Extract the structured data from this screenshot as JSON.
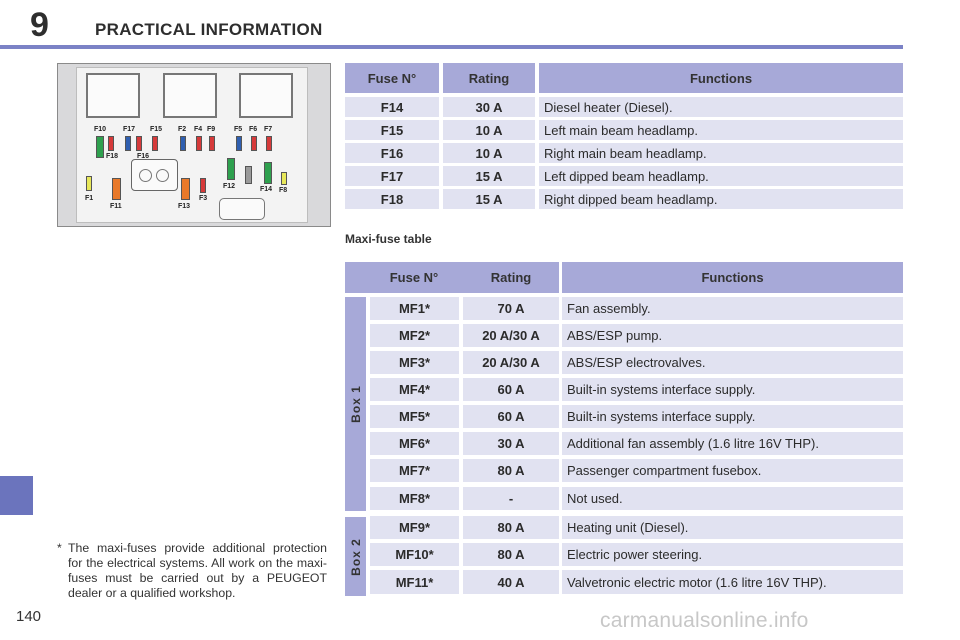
{
  "header": {
    "chapter_number": "9",
    "chapter_title": "PRACTICAL INFORMATION"
  },
  "page_number": "140",
  "watermark": "carmanualsonline.info",
  "fuse_table": {
    "headers": [
      "Fuse N°",
      "Rating",
      "Functions"
    ],
    "rows": [
      {
        "fuse": "F14",
        "rating": "30 A",
        "function": "Diesel heater (Diesel)."
      },
      {
        "fuse": "F15",
        "rating": "10 A",
        "function": "Left main beam headlamp."
      },
      {
        "fuse": "F16",
        "rating": "10 A",
        "function": "Right main beam headlamp."
      },
      {
        "fuse": "F17",
        "rating": "15 A",
        "function": "Left dipped beam headlamp."
      },
      {
        "fuse": "F18",
        "rating": "15 A",
        "function": "Right dipped beam headlamp."
      }
    ]
  },
  "maxi_fuse_table": {
    "title": "Maxi-fuse table",
    "headers": [
      "Fuse N°",
      "Rating",
      "Functions"
    ],
    "box_labels": [
      "Box 1",
      "Box 2"
    ],
    "rows": [
      {
        "fuse": "MF1*",
        "rating": "70 A",
        "function": "Fan assembly."
      },
      {
        "fuse": "MF2*",
        "rating": "20 A/30 A",
        "function": "ABS/ESP pump."
      },
      {
        "fuse": "MF3*",
        "rating": "20 A/30 A",
        "function": "ABS/ESP electrovalves."
      },
      {
        "fuse": "MF4*",
        "rating": "60 A",
        "function": "Built-in systems interface supply."
      },
      {
        "fuse": "MF5*",
        "rating": "60 A",
        "function": "Built-in systems interface supply."
      },
      {
        "fuse": "MF6*",
        "rating": "30 A",
        "function": "Additional fan assembly (1.6 litre 16V THP)."
      },
      {
        "fuse": "MF7*",
        "rating": "80 A",
        "function": "Passenger compartment fusebox."
      },
      {
        "fuse": "MF8*",
        "rating": "-",
        "function": "Not used."
      },
      {
        "fuse": "MF9*",
        "rating": "80 A",
        "function": "Heating unit (Diesel)."
      },
      {
        "fuse": "MF10*",
        "rating": "80 A",
        "function": "Electric power steering."
      },
      {
        "fuse": "MF11*",
        "rating": "40 A",
        "function": "Valvetronic electric motor (1.6 litre 16V THP)."
      }
    ]
  },
  "footnote": {
    "marker": "*",
    "text": "The maxi-fuses provide additional protection for the electrical systems. All work on the maxi-fuses must be carried out by a PEUGEOT dealer or a qualified workshop."
  },
  "diagram_labels": [
    "F10",
    "F17",
    "F15",
    "F2",
    "F4",
    "F9",
    "F5",
    "F6",
    "F7",
    "F18",
    "F16",
    "F12",
    "F14",
    "F8",
    "F1",
    "F11",
    "F13",
    "F3"
  ],
  "colors": {
    "accent": "#7b82c6",
    "table_header": "#a7a9d8",
    "table_row": "#e1e2f1"
  }
}
